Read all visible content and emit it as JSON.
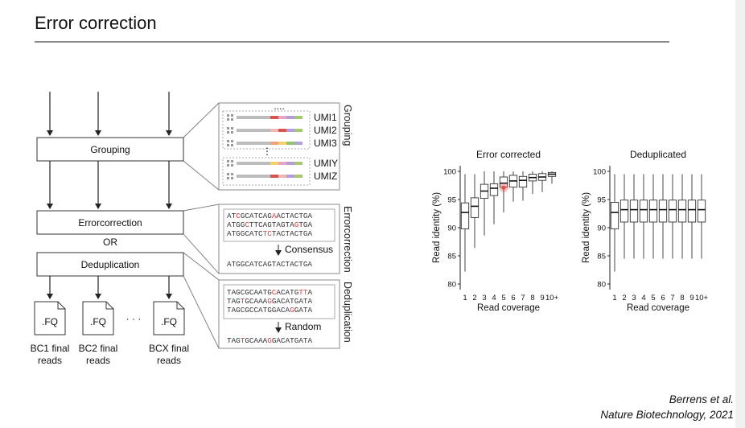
{
  "slide": {
    "title": "Error correction"
  },
  "workflow": {
    "boxes": {
      "grouping": "Grouping",
      "errorcorrection": "Errorcorrection",
      "or": "OR",
      "deduplication": "Deduplication"
    },
    "files": [
      {
        "ext": ".FQ",
        "line1": "BC1 final",
        "line2": "reads"
      },
      {
        "ext": ".FQ",
        "line1": "BC2 final",
        "line2": "reads"
      },
      {
        "ext": ".FQ",
        "line1": "BCX final",
        "line2": "reads"
      }
    ],
    "ellipsis": "· · ·"
  },
  "panels": {
    "grouping": {
      "side_label": "Grouping",
      "umis": [
        "UMI1",
        "UMI2",
        "UMI3",
        "UMIY",
        "UMIZ"
      ],
      "dots": "....",
      "vdots": "⋮"
    },
    "errorcorrection": {
      "side_label": "Errorcorrection",
      "reads": [
        [
          {
            "t": "AT"
          },
          {
            "t": "C",
            "red": true
          },
          {
            "t": "GCATCAG"
          },
          {
            "t": "A",
            "red": true
          },
          {
            "t": "ACTACTGA"
          }
        ],
        [
          {
            "t": "ATGG"
          },
          {
            "t": "C",
            "red": true
          },
          {
            "t": "TTCAGTAGTA"
          },
          {
            "t": "G",
            "red": true
          },
          {
            "t": "TGA"
          }
        ],
        [
          {
            "t": "ATGGCATC"
          },
          {
            "t": "TC",
            "red": true
          },
          {
            "t": "TACTACTGA"
          }
        ]
      ],
      "action": "Consensus",
      "result": [
        {
          "t": "ATGGCATCAGTACTACTGA"
        }
      ]
    },
    "deduplication": {
      "side_label": "Deduplication",
      "reads": [
        [
          {
            "t": "TAGCGCAATG"
          },
          {
            "t": "C",
            "red": true
          },
          {
            "t": "ACATG"
          },
          {
            "t": "TT",
            "red": true
          },
          {
            "t": "A"
          }
        ],
        [
          {
            "t": "TAG"
          },
          {
            "t": "T",
            "red": true
          },
          {
            "t": "GCAAA"
          },
          {
            "t": "G",
            "red": true
          },
          {
            "t": "GACATGATA"
          }
        ],
        [
          {
            "t": "TAGCGCCATGGACA"
          },
          {
            "t": "G",
            "red": true
          },
          {
            "t": "GATA"
          }
        ]
      ],
      "action": "Random",
      "result": [
        {
          "t": "TAG"
        },
        {
          "t": "T",
          "red": true
        },
        {
          "t": "GCAAA"
        },
        {
          "t": "G",
          "red": true
        },
        {
          "t": "GACATGATA"
        }
      ]
    }
  },
  "chart_data": [
    {
      "type": "box",
      "title": "Error corrected",
      "xlabel": "Read coverage",
      "ylabel": "Read identity (%)",
      "categories": [
        "1",
        "2",
        "3",
        "4",
        "5",
        "6",
        "7",
        "8",
        "9",
        "10+"
      ],
      "ylim": [
        79,
        101
      ],
      "yticks": [
        80,
        85,
        90,
        95,
        100
      ],
      "boxes": [
        {
          "min": 82.2,
          "q1": 89.8,
          "median": 92.7,
          "q3": 94.4,
          "max": 99.5
        },
        {
          "min": 86.4,
          "q1": 91.8,
          "median": 93.8,
          "q3": 95.3,
          "max": 99.5
        },
        {
          "min": 88.6,
          "q1": 95.2,
          "median": 96.5,
          "q3": 97.7,
          "max": 100.0
        },
        {
          "min": 90.6,
          "q1": 95.7,
          "median": 97.0,
          "q3": 97.8,
          "max": 100.0
        },
        {
          "min": 92.7,
          "q1": 97.2,
          "median": 97.9,
          "q3": 99.0,
          "max": 100.0
        },
        {
          "min": 94.6,
          "q1": 97.2,
          "median": 98.3,
          "q3": 99.3,
          "max": 100.0
        },
        {
          "min": 94.8,
          "q1": 97.2,
          "median": 98.4,
          "q3": 99.1,
          "max": 100.0
        },
        {
          "min": 96.0,
          "q1": 98.3,
          "median": 98.9,
          "q3": 99.5,
          "max": 100.0
        },
        {
          "min": 96.3,
          "q1": 98.4,
          "median": 99.0,
          "q3": 99.6,
          "max": 100.0
        },
        {
          "min": 97.8,
          "q1": 99.1,
          "median": 99.5,
          "q3": 99.8,
          "max": 100.0
        }
      ],
      "highlight": {
        "category": "5",
        "value": 97.1,
        "color": "#e74c4c"
      }
    },
    {
      "type": "box",
      "title": "Deduplicated",
      "xlabel": "Read coverage",
      "ylabel": "Read identity (%)",
      "categories": [
        "1",
        "2",
        "3",
        "4",
        "5",
        "6",
        "7",
        "8",
        "9",
        "10+"
      ],
      "ylim": [
        79,
        101
      ],
      "yticks": [
        80,
        85,
        90,
        95,
        100
      ],
      "boxes": [
        {
          "min": 82.2,
          "q1": 89.8,
          "median": 92.7,
          "q3": 94.5,
          "max": 99.5
        },
        {
          "min": 84.5,
          "q1": 91.0,
          "median": 93.2,
          "q3": 94.9,
          "max": 99.5
        },
        {
          "min": 84.5,
          "q1": 91.0,
          "median": 93.2,
          "q3": 94.9,
          "max": 99.5
        },
        {
          "min": 84.5,
          "q1": 91.0,
          "median": 93.2,
          "q3": 94.9,
          "max": 99.5
        },
        {
          "min": 84.5,
          "q1": 91.0,
          "median": 93.2,
          "q3": 94.9,
          "max": 99.5
        },
        {
          "min": 84.5,
          "q1": 91.0,
          "median": 93.2,
          "q3": 94.9,
          "max": 99.5
        },
        {
          "min": 84.5,
          "q1": 91.0,
          "median": 93.2,
          "q3": 94.9,
          "max": 99.5
        },
        {
          "min": 84.5,
          "q1": 91.0,
          "median": 93.2,
          "q3": 94.9,
          "max": 99.5
        },
        {
          "min": 84.5,
          "q1": 91.0,
          "median": 93.2,
          "q3": 94.9,
          "max": 99.5
        },
        {
          "min": 84.5,
          "q1": 91.0,
          "median": 93.2,
          "q3": 94.9,
          "max": 99.5
        }
      ]
    }
  ],
  "citation": {
    "line1": "Berrens et al.",
    "line2": "Nature Biotechnology, 2021"
  },
  "colors": {
    "highlight": "#e74c4c",
    "sequence_red": "#e03a3a",
    "rule": "#8a8a8a"
  }
}
